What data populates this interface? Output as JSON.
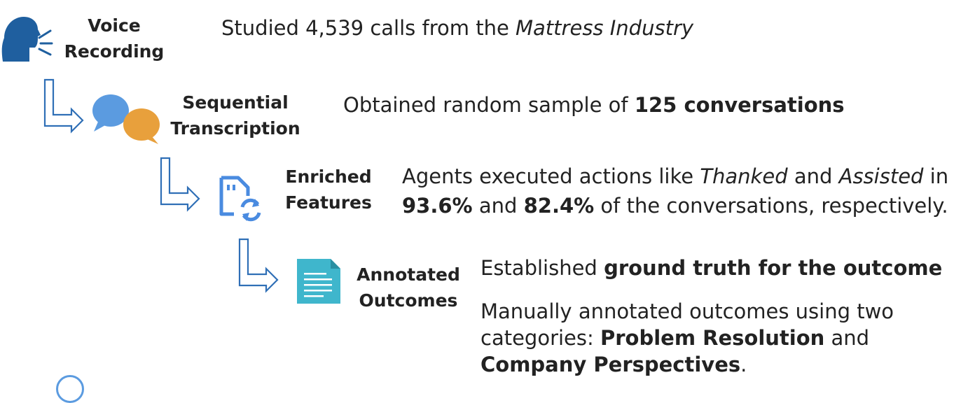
{
  "stages": [
    {
      "label_line1": "Voice",
      "label_line2": "Recording",
      "icon": "speaking-head-icon",
      "description": [
        {
          "text": "Studied 4,539 calls from the ",
          "style": "normal"
        },
        {
          "text": "Mattress Industry",
          "style": "italic"
        }
      ]
    },
    {
      "label_line1": "Sequential",
      "label_line2": "Transcription",
      "icon": "chat-bubbles-icon",
      "description": [
        {
          "text": "Obtained random sample of ",
          "style": "normal"
        },
        {
          "text": "125 conversations",
          "style": "bold"
        }
      ]
    },
    {
      "label_line1": "Enriched",
      "label_line2": "Features",
      "icon": "file-sync-icon",
      "description_line1": [
        {
          "text": "Agents executed actions like ",
          "style": "normal"
        },
        {
          "text": "Thanked",
          "style": "italic"
        },
        {
          "text": " and ",
          "style": "normal"
        },
        {
          "text": "Assisted",
          "style": "italic"
        },
        {
          "text": " in",
          "style": "normal"
        }
      ],
      "description_line2": [
        {
          "text": "93.6%",
          "style": "bold"
        },
        {
          "text": " and ",
          "style": "normal"
        },
        {
          "text": "82.4%",
          "style": "bold"
        },
        {
          "text": " of the conversations, respectively.",
          "style": "normal"
        }
      ]
    },
    {
      "label_line1": "Annotated",
      "label_line2": "Outcomes",
      "icon": "document-icon",
      "description": [
        {
          "text": "Established ",
          "style": "normal"
        },
        {
          "text": "ground truth for the outcome",
          "style": "bold"
        }
      ],
      "description_extra": [
        {
          "text": "Manually annotated outcomes using two categories: ",
          "style": "normal"
        },
        {
          "text": "Problem Resolution",
          "style": "bold"
        },
        {
          "text": " and ",
          "style": "normal"
        },
        {
          "text": "Company Perspectives",
          "style": "bold"
        },
        {
          "text": ".",
          "style": "normal"
        }
      ]
    }
  ],
  "colors": {
    "head_icon": "#1f5f9f",
    "bubble_blue": "#5b9be0",
    "bubble_orange": "#e8a03c",
    "file_icon": "#4a8be0",
    "doc_icon": "#3fb6cc",
    "arrow_stroke": "#2f6fb6"
  }
}
